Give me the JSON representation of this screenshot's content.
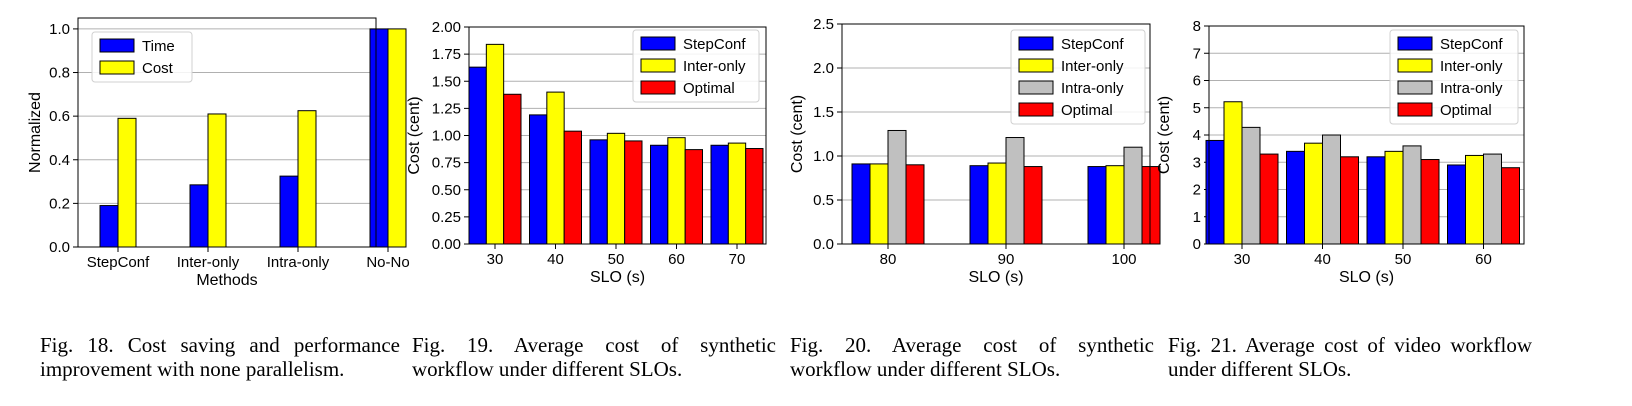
{
  "colors": {
    "blue": "#0000ff",
    "yellow": "#ffff00",
    "red": "#ff0000",
    "gray": "#c0c0c0",
    "grid": "#b0b0b0"
  },
  "captions": [
    "Fig. 18.  Cost saving and performance improvement with none parallelism.",
    "Fig. 19.   Average cost of synthetic workflow under different SLOs.",
    "Fig. 20.   Average cost of synthetic workflow under different SLOs.",
    "Fig. 21.  Average cost of video workflow under different SLOs."
  ],
  "chart_data": [
    {
      "type": "bar",
      "xlabel": "Methods",
      "ylabel": "Normalized",
      "categories": [
        "StepConf",
        "Inter-only",
        "Intra-only",
        "No-No"
      ],
      "ylim": [
        0,
        1.05
      ],
      "yticks": [
        "0.0",
        "0.2",
        "0.4",
        "0.6",
        "0.8",
        "1.0"
      ],
      "grid": true,
      "legend": "top-left",
      "series": [
        {
          "name": "Time",
          "color": "blue",
          "values": [
            0.19,
            0.285,
            0.325,
            1.0
          ]
        },
        {
          "name": "Cost",
          "color": "yellow",
          "values": [
            0.59,
            0.61,
            0.625,
            1.0
          ]
        }
      ]
    },
    {
      "type": "bar",
      "xlabel": "SLO (s)",
      "ylabel": "Cost (cent)",
      "categories": [
        "30",
        "40",
        "50",
        "60",
        "70"
      ],
      "ylim": [
        0,
        2.0
      ],
      "yticks": [
        "0.00",
        "0.25",
        "0.50",
        "0.75",
        "1.00",
        "1.25",
        "1.50",
        "1.75",
        "2.00"
      ],
      "grid": true,
      "legend": "top-right",
      "series": [
        {
          "name": "StepConf",
          "color": "blue",
          "values": [
            1.63,
            1.19,
            0.96,
            0.91,
            0.91
          ]
        },
        {
          "name": "Inter-only",
          "color": "yellow",
          "values": [
            1.84,
            1.4,
            1.02,
            0.98,
            0.93
          ]
        },
        {
          "name": "Optimal",
          "color": "red",
          "values": [
            1.38,
            1.04,
            0.95,
            0.87,
            0.88
          ]
        }
      ]
    },
    {
      "type": "bar",
      "xlabel": "SLO (s)",
      "ylabel": "Cost (cent)",
      "categories": [
        "80",
        "90",
        "100"
      ],
      "ylim": [
        0,
        2.5
      ],
      "yticks": [
        "0.0",
        "0.5",
        "1.0",
        "1.5",
        "2.0",
        "2.5"
      ],
      "grid": true,
      "legend": "top-right",
      "series": [
        {
          "name": "StepConf",
          "color": "blue",
          "values": [
            0.91,
            0.89,
            0.88
          ]
        },
        {
          "name": "Inter-only",
          "color": "yellow",
          "values": [
            0.91,
            0.92,
            0.89
          ]
        },
        {
          "name": "Intra-only",
          "color": "gray",
          "values": [
            1.29,
            1.21,
            1.1
          ]
        },
        {
          "name": "Optimal",
          "color": "red",
          "values": [
            0.9,
            0.88,
            0.88
          ]
        }
      ]
    },
    {
      "type": "bar",
      "xlabel": "SLO (s)",
      "ylabel": "Cost (cent)",
      "categories": [
        "30",
        "40",
        "50",
        "60"
      ],
      "ylim": [
        0,
        8
      ],
      "yticks": [
        "0",
        "1",
        "2",
        "3",
        "4",
        "5",
        "6",
        "7",
        "8"
      ],
      "grid": true,
      "legend": "top-right",
      "series": [
        {
          "name": "StepConf",
          "color": "blue",
          "values": [
            3.8,
            3.4,
            3.2,
            2.9
          ]
        },
        {
          "name": "Inter-only",
          "color": "yellow",
          "values": [
            5.22,
            3.7,
            3.4,
            3.25
          ]
        },
        {
          "name": "Intra-only",
          "color": "gray",
          "values": [
            4.28,
            4.0,
            3.6,
            3.3
          ]
        },
        {
          "name": "Optimal",
          "color": "red",
          "values": [
            3.3,
            3.2,
            3.1,
            2.8
          ]
        }
      ]
    }
  ]
}
